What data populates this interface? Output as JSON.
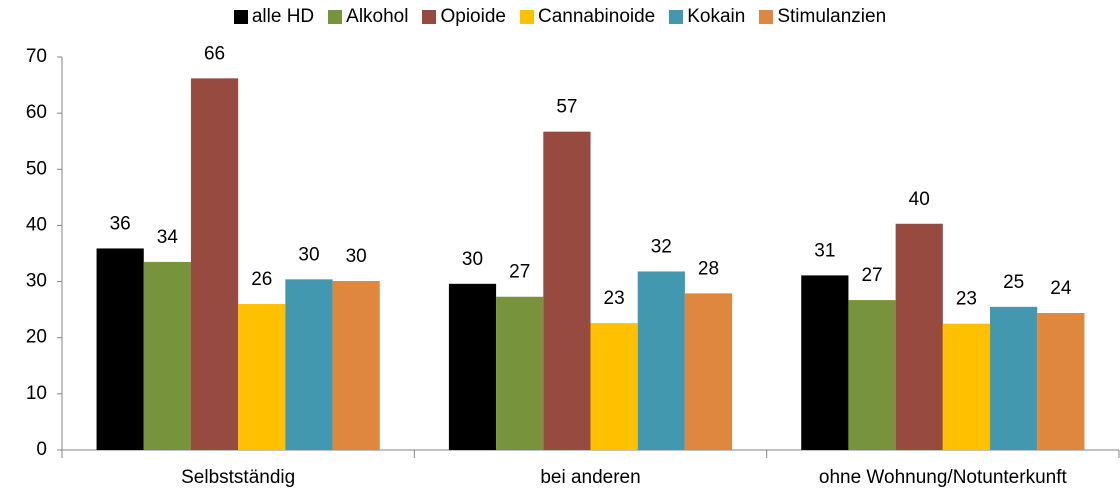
{
  "chart_data": {
    "type": "bar",
    "categories": [
      "Selbstständig",
      "bei anderen",
      "ohne Wohnung/Notunterkunft"
    ],
    "series": [
      {
        "name": "alle HD",
        "color": "#000000",
        "values": [
          35.9,
          29.6,
          31.1
        ],
        "value_labels": [
          "36",
          "30",
          "31"
        ]
      },
      {
        "name": "Alkohol",
        "color": "#77933c",
        "values": [
          33.5,
          27.3,
          26.7
        ],
        "value_labels": [
          "34",
          "27",
          "27"
        ]
      },
      {
        "name": "Opioide",
        "color": "#974a40",
        "values": [
          66.2,
          56.7,
          40.3
        ],
        "value_labels": [
          "66",
          "57",
          "40"
        ]
      },
      {
        "name": "Cannabinoide",
        "color": "#ffc000",
        "values": [
          26.0,
          22.6,
          22.5
        ],
        "value_labels": [
          "26",
          "23",
          "23"
        ]
      },
      {
        "name": "Kokain",
        "color": "#4198af",
        "values": [
          30.4,
          31.8,
          25.5
        ],
        "value_labels": [
          "30",
          "32",
          "25"
        ]
      },
      {
        "name": "Stimulanzien",
        "color": "#e0873f",
        "values": [
          30.1,
          27.9,
          24.4
        ],
        "value_labels": [
          "30",
          "28",
          "24"
        ]
      }
    ],
    "ylim": [
      0,
      70
    ],
    "yticks": [
      0,
      10,
      20,
      30,
      40,
      50,
      60,
      70
    ],
    "grid": false,
    "legend": "top"
  }
}
